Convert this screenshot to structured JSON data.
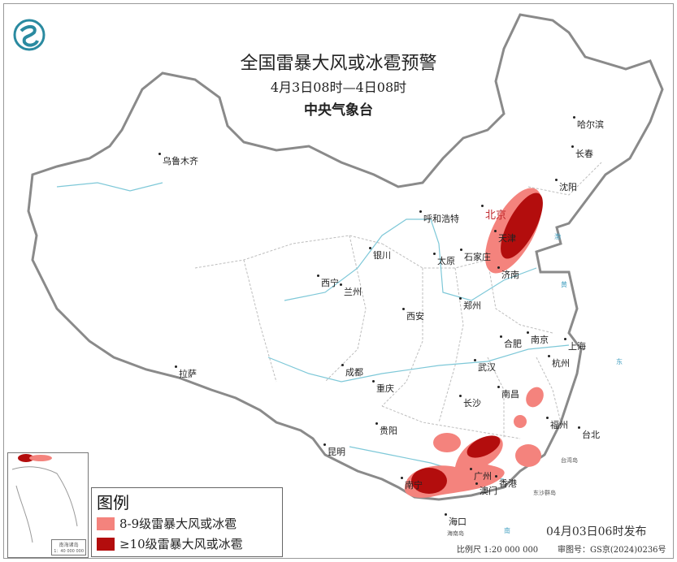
{
  "header": {
    "title": "全国雷暴大风或冰雹预警",
    "period": "4月3日08时—4日08时",
    "issuer": "中央气象台"
  },
  "logo": {
    "name": "cma-logo-icon",
    "color": "#2a8aa0"
  },
  "cities": [
    {
      "name": "乌鲁木齐"
    },
    {
      "name": "哈尔滨"
    },
    {
      "name": "长春"
    },
    {
      "name": "沈阳"
    },
    {
      "name": "呼和浩特"
    },
    {
      "name": "北京"
    },
    {
      "name": "天津"
    },
    {
      "name": "银川"
    },
    {
      "name": "太原"
    },
    {
      "name": "石家庄"
    },
    {
      "name": "济南"
    },
    {
      "name": "西宁"
    },
    {
      "name": "兰州"
    },
    {
      "name": "郑州"
    },
    {
      "name": "西安"
    },
    {
      "name": "合肥"
    },
    {
      "name": "南京"
    },
    {
      "name": "上海"
    },
    {
      "name": "拉萨"
    },
    {
      "name": "成都"
    },
    {
      "name": "武汉"
    },
    {
      "name": "杭州"
    },
    {
      "name": "重庆"
    },
    {
      "name": "长沙"
    },
    {
      "name": "南昌"
    },
    {
      "name": "贵阳"
    },
    {
      "name": "福州"
    },
    {
      "name": "台北"
    },
    {
      "name": "昆明"
    },
    {
      "name": "南宁"
    },
    {
      "name": "广州"
    },
    {
      "name": "香港"
    },
    {
      "name": "澳门"
    },
    {
      "name": "海口"
    }
  ],
  "small_labels": {
    "dongsha": "东沙群岛",
    "taiwan": "台湾岛",
    "hainan": "海南岛"
  },
  "seas": {
    "bohai": "渤",
    "huanghai": "黄",
    "donghai": "东",
    "nanhai": "南"
  },
  "inset": {
    "label": "南海诸岛",
    "scale": "1：40 000 000"
  },
  "legend": {
    "title": "图例",
    "items": [
      {
        "label": "8-9级雷暴大风或冰雹",
        "color": "#f4837d"
      },
      {
        "label": "≥10级雷暴大风或冰雹",
        "color": "#b30d0d"
      }
    ]
  },
  "footer": {
    "issued": "04月03日06时发布",
    "scale": "比例尺 1:20 000 000",
    "review_no": "审图号：GS京(2024)0236号"
  },
  "colors": {
    "border": "#999999",
    "river": "#7ec8d8",
    "capital": "#c0282d"
  }
}
